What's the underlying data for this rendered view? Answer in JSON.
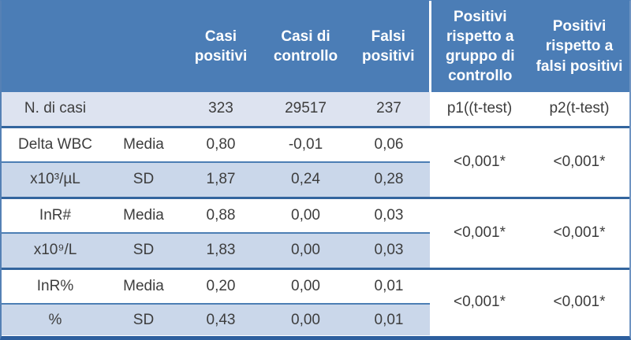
{
  "table": {
    "header": {
      "casi_positivi": "Casi positivi",
      "casi_di_controllo": "Casi di controllo",
      "falsi_positivi": "Falsi positivi",
      "positivi_vs_gruppo_controllo": "Positivi rispetto a gruppo di controllo",
      "positivi_vs_falsi_positivi": "Positivi rispetto a falsi positivi"
    },
    "n_row": {
      "label": "N. di casi",
      "values": [
        "323",
        "29517",
        "237"
      ],
      "p1": "p1((t-test)",
      "p2": "p2(t-test)"
    },
    "groups": [
      {
        "media": {
          "label": "Delta WBC",
          "stat": "Media",
          "values": [
            "0,80",
            "-0,01",
            "0,06"
          ]
        },
        "sd": {
          "label": "x10³/µL",
          "stat": "SD",
          "values": [
            "1,87",
            "0,24",
            "0,28"
          ]
        },
        "p1": "<0,001*",
        "p2": "<0,001*"
      },
      {
        "media": {
          "label": "InR#",
          "stat": "Media",
          "values": [
            "0,88",
            "0,00",
            "0,03"
          ]
        },
        "sd": {
          "label": "x10⁹/L",
          "stat": "SD",
          "values": [
            "1,83",
            "0,00",
            "0,03"
          ]
        },
        "p1": "<0,001*",
        "p2": "<0,001*"
      },
      {
        "media": {
          "label": "InR%",
          "stat": "Media",
          "values": [
            "0,20",
            "0,00",
            "0,01"
          ]
        },
        "sd": {
          "label": "%",
          "stat": "SD",
          "values": [
            "0,43",
            "0,00",
            "0,01"
          ]
        },
        "p1": "<0,001*",
        "p2": "<0,001*"
      }
    ]
  },
  "chart_data": {
    "type": "table",
    "columns": [
      "",
      "",
      "Casi positivi",
      "Casi di controllo",
      "Falsi positivi",
      "Positivi rispetto a gruppo di controllo",
      "Positivi rispetto a falsi positivi"
    ],
    "rows": [
      [
        "N. di casi",
        "",
        "323",
        "29517",
        "237",
        "p1((t-test)",
        "p2(t-test)"
      ],
      [
        "Delta WBC",
        "Media",
        "0,80",
        "-0,01",
        "0,06",
        "<0,001*",
        "<0,001*"
      ],
      [
        "x10³/µL",
        "SD",
        "1,87",
        "0,24",
        "0,28",
        "",
        ""
      ],
      [
        "InR#",
        "Media",
        "0,88",
        "0,00",
        "0,03",
        "<0,001*",
        "<0,001*"
      ],
      [
        "x10⁹/L",
        "SD",
        "1,83",
        "0,00",
        "0,03",
        "",
        ""
      ],
      [
        "InR%",
        "Media",
        "0,20",
        "0,00",
        "0,01",
        "<0,001*",
        "<0,001*"
      ],
      [
        "%",
        "SD",
        "0,43",
        "0,00",
        "0,01",
        "",
        ""
      ]
    ],
    "layout_hints": "p-value cells in the last two columns are merged vertically across each Media/SD row pair"
  },
  "colors": {
    "header_bg": "#4b7db6",
    "header_text": "#ffffff",
    "row_light_bg": "#dde3f0",
    "row_blue_bg": "#cad7ea",
    "row_white_bg": "#ffffff",
    "border_outer_bottom": "#2d5f9e",
    "border_group": "#33659e",
    "border_inner": "#4c7eb4",
    "text": "#3d3d3d"
  }
}
